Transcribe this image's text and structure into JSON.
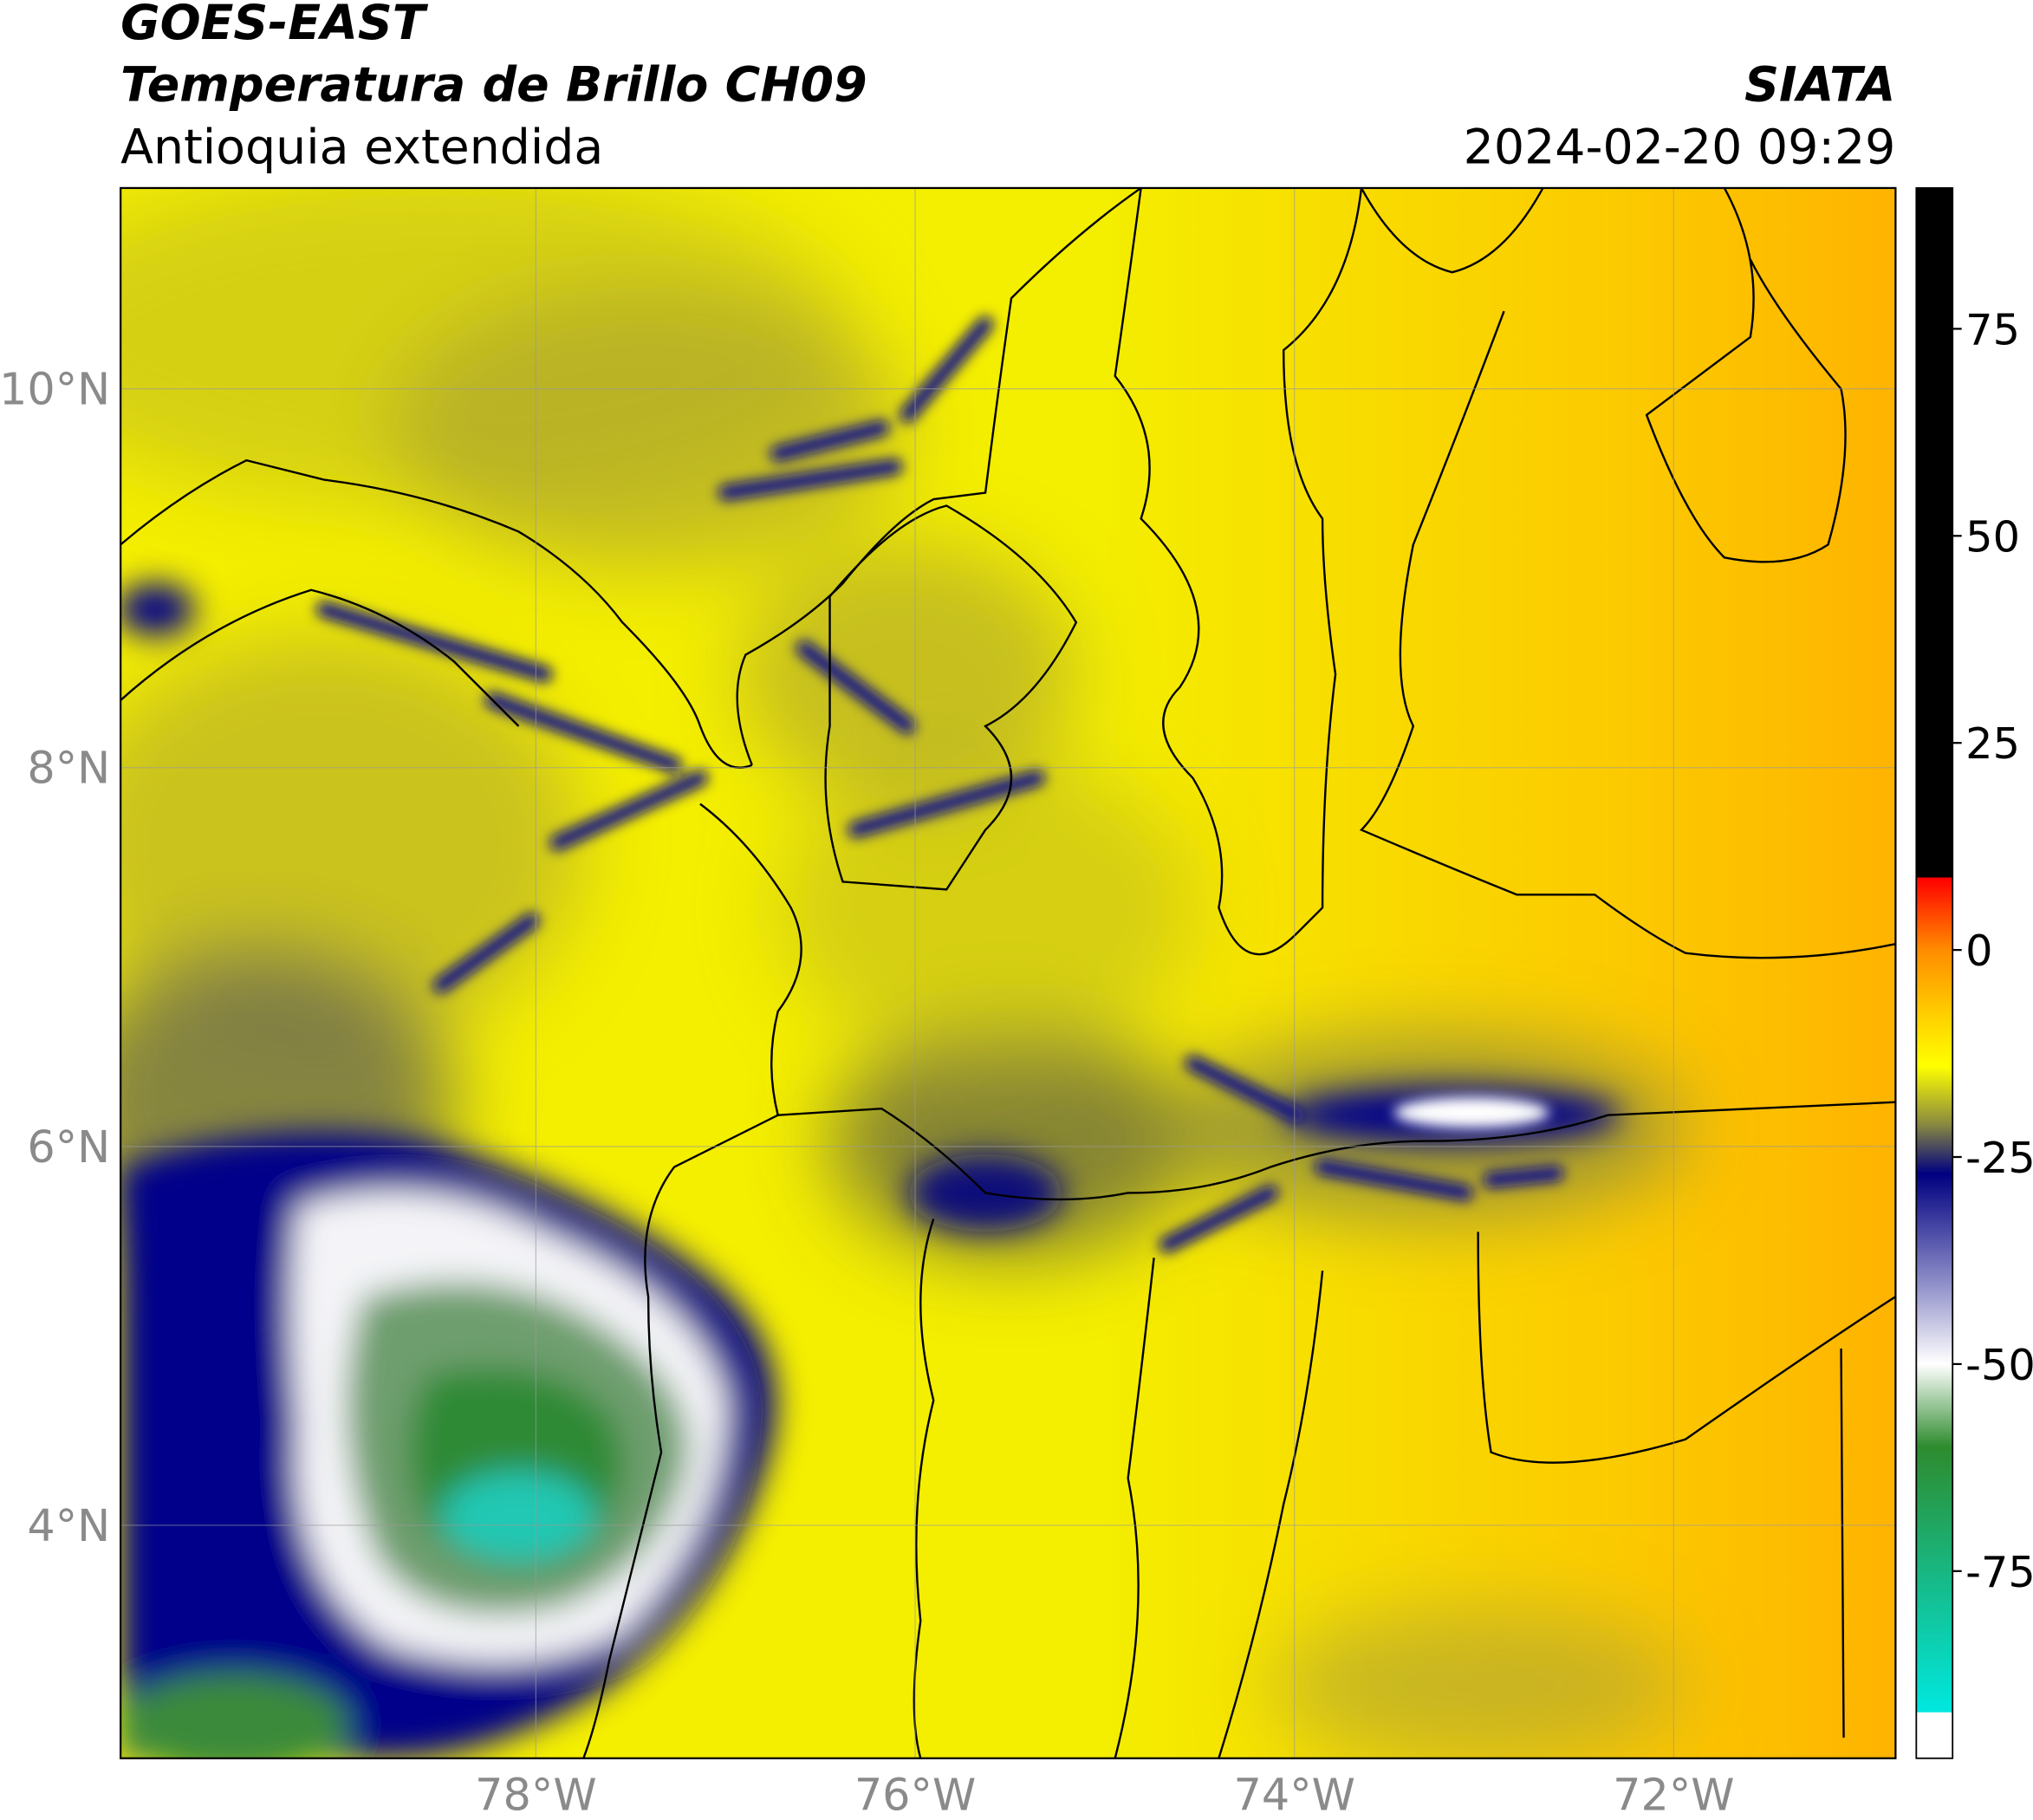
{
  "chart_data": {
    "type": "map",
    "title": "GOES-EAST",
    "subtitle": "Temperatura de Brillo CH09",
    "region": "Antioquia extendida",
    "source": "SIATA",
    "datetime": "2024-02-20 09:29",
    "xlim": [
      -80.19,
      -70.83
    ],
    "ylim": [
      2.77,
      11.06
    ],
    "xticks": [
      {
        "value": -78,
        "label": "78°W"
      },
      {
        "value": -76,
        "label": "76°W"
      },
      {
        "value": -74,
        "label": "74°W"
      },
      {
        "value": -72,
        "label": "72°W"
      }
    ],
    "yticks": [
      {
        "value": 4,
        "label": "4°N"
      },
      {
        "value": 6,
        "label": "6°N"
      },
      {
        "value": 8,
        "label": "8°N"
      },
      {
        "value": 10,
        "label": "10°N"
      }
    ],
    "grid": true,
    "colorbar": {
      "lim": [
        -97.6,
        92
      ],
      "ticks": [
        75,
        50,
        25,
        0,
        -25,
        -50,
        -75
      ],
      "stops": [
        {
          "value": 92,
          "color": "#000000"
        },
        {
          "value": 8.8,
          "color": "#000000"
        },
        {
          "value": 8.7,
          "color": "#ff0000"
        },
        {
          "value": 0,
          "color": "#ff8c00"
        },
        {
          "value": -8,
          "color": "#ffd000"
        },
        {
          "value": -14,
          "color": "#ffff00"
        },
        {
          "value": -21,
          "color": "#8a8a40"
        },
        {
          "value": -27,
          "color": "#000080"
        },
        {
          "value": -40,
          "color": "#8c8cc8"
        },
        {
          "value": -50,
          "color": "#ffffff"
        },
        {
          "value": -60,
          "color": "#2e8b2e"
        },
        {
          "value": -92,
          "color": "#00e8e0"
        },
        {
          "value": -92.1,
          "color": "#ffffff"
        },
        {
          "value": -97.6,
          "color": "#ffffff"
        }
      ]
    }
  }
}
